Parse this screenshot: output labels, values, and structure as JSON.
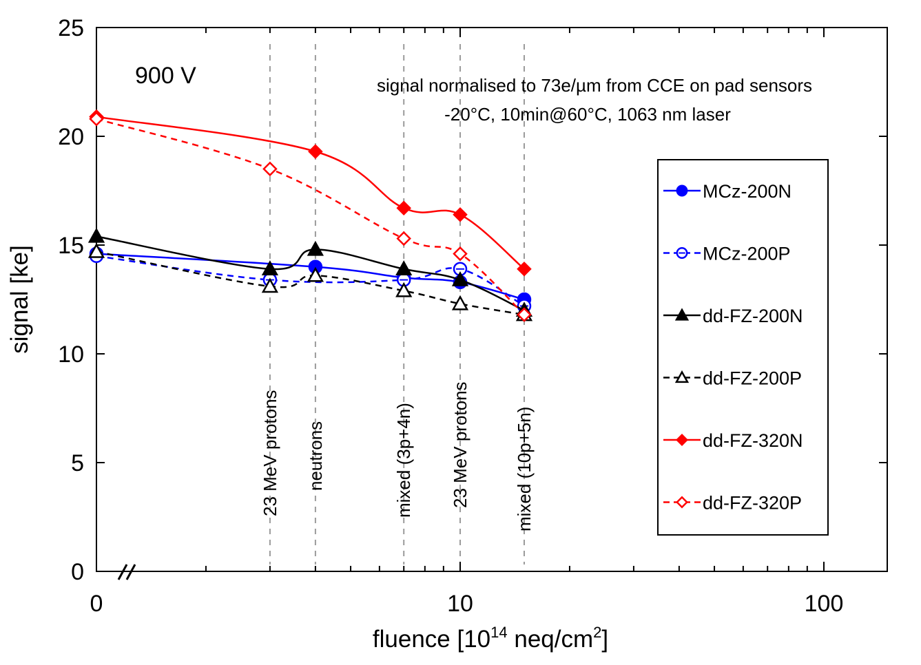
{
  "chart_data": {
    "type": "line",
    "xscale": "log",
    "xlabel_main": "fluence [10",
    "xlabel_sup1": "14",
    "xlabel_mid": " neq/cm",
    "xlabel_sup2": "2",
    "xlabel_end": "]",
    "ylabel": "signal [ke]",
    "ylim": [
      0,
      25
    ],
    "xlim": [
      1,
      140
    ],
    "yticks": [
      "0",
      "5",
      "10",
      "15",
      "20",
      "25"
    ],
    "xticks": [
      "0",
      "10",
      "100"
    ],
    "voltage_label": "900 V",
    "annotation_line1": "signal normalised to 73e/µm from CCE on pad sensors",
    "annotation_line2": "-20°C, 10min@60°C,  1063 nm laser",
    "irradiations": [
      {
        "fluence": 3,
        "label": "23 MeV protons"
      },
      {
        "fluence": 4,
        "label": "neutrons"
      },
      {
        "fluence": 7,
        "label": "mixed (3p+4n)"
      },
      {
        "fluence": 10,
        "label": "23 MeV protons"
      },
      {
        "fluence": 15,
        "label": "mixed (10p+5n)"
      }
    ],
    "x": [
      0,
      3,
      4,
      7,
      10,
      15
    ],
    "series": [
      {
        "name": "MCz-200N",
        "color": "#0000ff",
        "dashed": false,
        "marker": "circle",
        "filled": true,
        "values": [
          14.6,
          null,
          14.0,
          13.5,
          13.3,
          12.5
        ]
      },
      {
        "name": "MCz-200P",
        "color": "#0000ff",
        "dashed": true,
        "marker": "circle",
        "filled": false,
        "values": [
          14.5,
          13.4,
          null,
          13.4,
          13.9,
          12.2
        ]
      },
      {
        "name": "dd-FZ-200N",
        "color": "#000000",
        "dashed": false,
        "marker": "triangle",
        "filled": true,
        "values": [
          15.4,
          13.9,
          14.8,
          13.9,
          13.4,
          12.0
        ]
      },
      {
        "name": "dd-FZ-200P",
        "color": "#000000",
        "dashed": true,
        "marker": "triangle",
        "filled": false,
        "values": [
          14.7,
          13.1,
          13.6,
          12.9,
          12.3,
          11.8
        ]
      },
      {
        "name": "dd-FZ-320N",
        "color": "#ff0000",
        "dashed": false,
        "marker": "diamond",
        "filled": true,
        "values": [
          20.9,
          null,
          19.3,
          16.7,
          16.4,
          13.9
        ]
      },
      {
        "name": "dd-FZ-320P",
        "color": "#ff0000",
        "dashed": true,
        "marker": "diamond",
        "filled": false,
        "values": [
          20.8,
          18.5,
          null,
          15.3,
          14.6,
          11.8
        ]
      }
    ]
  }
}
